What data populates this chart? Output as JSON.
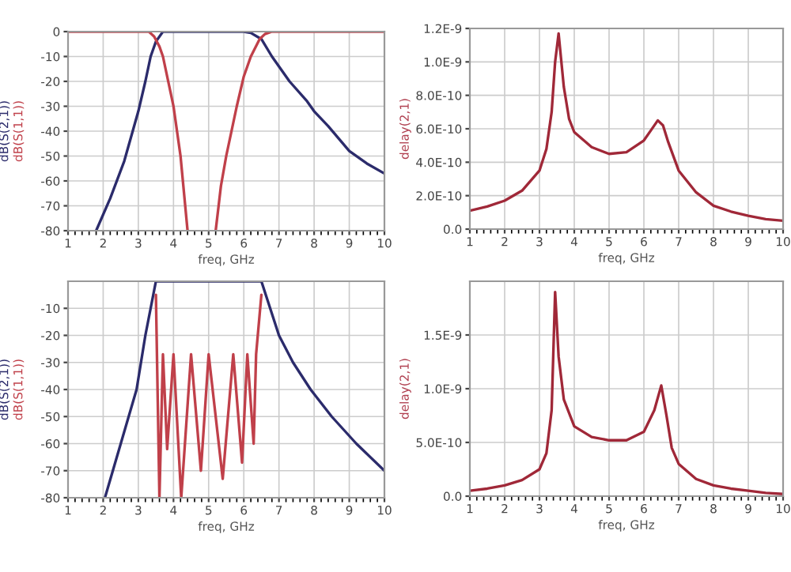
{
  "chart_data": [
    {
      "type": "line",
      "xlabel": "freq, GHz",
      "xlim": [
        1,
        10
      ],
      "xticks": [
        1,
        2,
        3,
        4,
        5,
        6,
        7,
        8,
        9,
        10
      ],
      "ylim": [
        -80,
        0
      ],
      "yticks": [
        -80,
        -70,
        -60,
        -50,
        -40,
        -30,
        -20,
        -10,
        0
      ],
      "grid": true,
      "legend": false,
      "series": [
        {
          "name": "dB(S(2,1))",
          "color": "#2b2b6b",
          "x": [
            1.8,
            2.2,
            2.6,
            3.0,
            3.2,
            3.35,
            3.5,
            3.7,
            4,
            5,
            6,
            6.2,
            6.5,
            6.8,
            7.3,
            7.8,
            8,
            8.4,
            9,
            9.5,
            10
          ],
          "values": [
            -80,
            -67,
            -52,
            -32,
            -20,
            -10,
            -4,
            0,
            0,
            0,
            0,
            -0.5,
            -3,
            -10,
            -20,
            -28,
            -32,
            -38,
            -48,
            -53,
            -57
          ]
        },
        {
          "name": "dB(S(1,1))",
          "color": "#c0404a",
          "x": [
            1,
            2,
            3,
            3.3,
            3.45,
            3.6,
            3.7,
            3.85,
            4.0,
            4.2,
            4.4,
            null,
            5.2,
            5.35,
            5.5,
            5.8,
            6.0,
            6.2,
            6.45,
            6.6,
            6.8,
            7,
            8,
            9,
            10
          ],
          "values": [
            0,
            0,
            0,
            0,
            -2,
            -6,
            -10,
            -20,
            -30,
            -50,
            -80,
            null,
            -80,
            -62,
            -50,
            -30,
            -18,
            -10,
            -3,
            -1,
            0,
            0,
            0,
            0,
            0
          ]
        }
      ]
    },
    {
      "type": "line",
      "xlabel": "freq, GHz",
      "ylabel": "delay(2,1)",
      "xlim": [
        1,
        10
      ],
      "xticks": [
        1,
        2,
        3,
        4,
        5,
        6,
        7,
        8,
        9,
        10
      ],
      "ylim": [
        0,
        1.2e-09
      ],
      "yticks": [
        {
          "value": 0,
          "label": "0.0"
        },
        {
          "value": 2e-10,
          "label": "2.0E-10"
        },
        {
          "value": 4e-10,
          "label": "4.0E-10"
        },
        {
          "value": 6e-10,
          "label": "6.0E-10"
        },
        {
          "value": 8e-10,
          "label": "8.0E-10"
        },
        {
          "value": 1e-09,
          "label": "1.0E-9"
        },
        {
          "value": 1.2e-09,
          "label": "1.2E-9"
        }
      ],
      "grid": true,
      "legend": false,
      "series": [
        {
          "color": "#a02838",
          "x": [
            1,
            1.5,
            2,
            2.5,
            3,
            3.2,
            3.35,
            3.45,
            3.55,
            3.7,
            3.85,
            4,
            4.5,
            5,
            5.5,
            6,
            6.2,
            6.4,
            6.55,
            6.7,
            7,
            7.5,
            8,
            8.5,
            9,
            9.5,
            10
          ],
          "values": [
            1.1e-10,
            1.35e-10,
            1.7e-10,
            2.3e-10,
            3.5e-10,
            4.8e-10,
            7e-10,
            1e-09,
            1.17e-09,
            8.5e-10,
            6.6e-10,
            5.8e-10,
            4.9e-10,
            4.5e-10,
            4.6e-10,
            5.3e-10,
            5.9e-10,
            6.5e-10,
            6.2e-10,
            5.2e-10,
            3.5e-10,
            2.2e-10,
            1.4e-10,
            1.05e-10,
            8e-11,
            6e-11,
            5e-11
          ]
        }
      ]
    },
    {
      "type": "line",
      "xlabel": "freq, GHz",
      "xlim": [
        1,
        10
      ],
      "xticks": [
        1,
        2,
        3,
        4,
        5,
        6,
        7,
        8,
        9,
        10
      ],
      "ylim": [
        -80,
        0
      ],
      "yticks": [
        -80,
        -70,
        -60,
        -50,
        -40,
        -30,
        -20,
        -10
      ],
      "grid": true,
      "legend": false,
      "series": [
        {
          "name": "dB(S(2,1))",
          "color": "#2b2b6b",
          "x": [
            2.05,
            2.5,
            2.95,
            3.2,
            3.35,
            3.5,
            4,
            5,
            6,
            6.5,
            6.75,
            7.0,
            7.4,
            7.9,
            8.5,
            9.2,
            10
          ],
          "values": [
            -80,
            -60,
            -40,
            -20,
            -10,
            0,
            0,
            0,
            0,
            0,
            -10,
            -20,
            -30,
            -40,
            -50,
            -60,
            -70
          ]
        },
        {
          "name": "dB(S(1,1))",
          "color": "#c0404a",
          "x": [
            3.5,
            3.6,
            3.7,
            3.82,
            4.0,
            4.22,
            4.5,
            4.78,
            5.0,
            5.4,
            5.7,
            5.95,
            6.1,
            6.28,
            6.35,
            6.5
          ],
          "values": [
            -5,
            -80,
            -27,
            -62,
            -27,
            -80,
            -27,
            -70,
            -27,
            -73,
            -27,
            -67,
            -27,
            -60,
            -27,
            -5
          ]
        }
      ]
    },
    {
      "type": "line",
      "xlabel": "freq, GHz",
      "ylabel": "delay(2,1)",
      "xlim": [
        1,
        10
      ],
      "xticks": [
        1,
        2,
        3,
        4,
        5,
        6,
        7,
        8,
        9,
        10
      ],
      "ylim": [
        0,
        2e-09
      ],
      "yticks": [
        {
          "value": 0,
          "label": "0.0"
        },
        {
          "value": 5e-10,
          "label": "5.0E-10"
        },
        {
          "value": 1e-09,
          "label": "1.0E-9"
        },
        {
          "value": 1.5e-09,
          "label": "1.5E-9"
        }
      ],
      "grid": true,
      "legend": false,
      "series": [
        {
          "color": "#a02838",
          "x": [
            1,
            1.5,
            2,
            2.5,
            3,
            3.2,
            3.35,
            3.45,
            3.55,
            3.7,
            4,
            4.5,
            5,
            5.5,
            6,
            6.3,
            6.5,
            6.65,
            6.8,
            7,
            7.5,
            8,
            8.5,
            9,
            9.5,
            10
          ],
          "values": [
            5e-11,
            7e-11,
            1e-10,
            1.5e-10,
            2.5e-10,
            4e-10,
            8e-10,
            1.9e-09,
            1.3e-09,
            9e-10,
            6.5e-10,
            5.5e-10,
            5.2e-10,
            5.2e-10,
            6e-10,
            8e-10,
            1.03e-09,
            7.5e-10,
            4.5e-10,
            3e-10,
            1.6e-10,
            1e-10,
            7e-11,
            5e-11,
            3e-11,
            2e-11
          ]
        }
      ]
    }
  ]
}
